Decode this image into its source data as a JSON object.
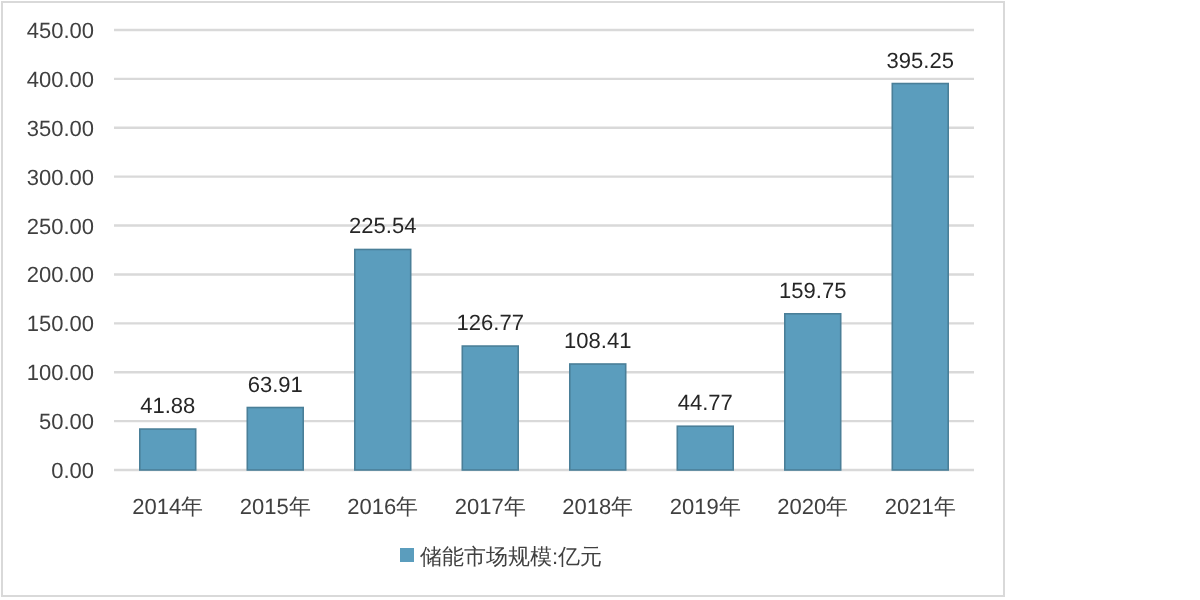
{
  "chart_data": {
    "type": "bar",
    "categories": [
      "2014年",
      "2015年",
      "2016年",
      "2017年",
      "2018年",
      "2019年",
      "2020年",
      "2021年"
    ],
    "series": [
      {
        "name": "储能市场规模:亿元",
        "color": "#5b9dbd",
        "values": [
          41.88,
          63.91,
          225.54,
          126.77,
          108.41,
          44.77,
          159.75,
          395.25
        ]
      }
    ],
    "ylim": [
      0,
      450
    ],
    "yticks": [
      {
        "value": 0,
        "label": "0.00"
      },
      {
        "value": 50,
        "label": "50.00"
      },
      {
        "value": 100,
        "label": "100.00"
      },
      {
        "value": 150,
        "label": "150.00"
      },
      {
        "value": 200,
        "label": "200.00"
      },
      {
        "value": 250,
        "label": "250.00"
      },
      {
        "value": 300,
        "label": "300.00"
      },
      {
        "value": 350,
        "label": "350.00"
      },
      {
        "value": 400,
        "label": "400.00"
      },
      {
        "value": 450,
        "label": "450.00"
      }
    ],
    "grid": "y",
    "data_labels": true,
    "legend": "bottom"
  }
}
